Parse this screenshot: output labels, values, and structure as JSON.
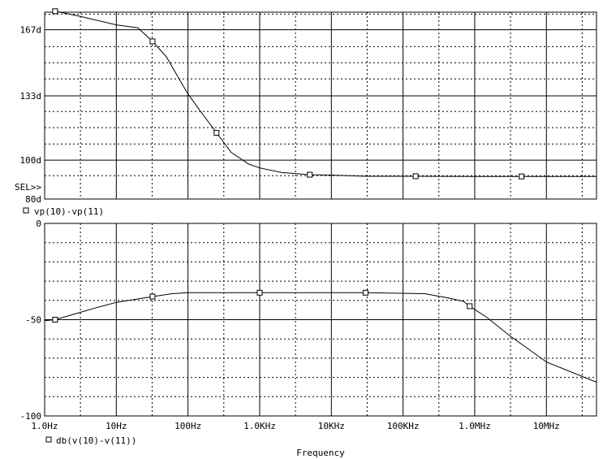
{
  "chart_data": [
    {
      "type": "line",
      "title": "",
      "x_scale": "log",
      "xlim": [
        1,
        50000000
      ],
      "ylim": [
        80,
        176
      ],
      "y_ticks": [
        {
          "value": 167,
          "label": "167d"
        },
        {
          "value": 133,
          "label": "133d"
        },
        {
          "value": 100,
          "label": "100d"
        },
        {
          "value": 80,
          "label": "80d"
        }
      ],
      "y_minor": [
        92,
        108.3,
        116.7,
        125,
        141.7,
        150,
        158.3,
        175
      ],
      "selection_label": "SEL>>",
      "series": [
        {
          "name": "vp(10)-vp(11)",
          "x": [
            1.4,
            3,
            10,
            20,
            32,
            50,
            80,
            100,
            150,
            250,
            400,
            700,
            1000,
            2000,
            5000,
            10000,
            30000,
            150000,
            1000000,
            4500000,
            50000000
          ],
          "y": [
            176.5,
            174,
            169.5,
            168,
            161,
            153,
            140,
            134,
            125,
            114,
            104,
            98,
            96,
            93.7,
            92.5,
            92.3,
            91.7,
            91.7,
            91.6,
            91.6,
            91.6
          ]
        }
      ],
      "markers": {
        "x": [
          1.4,
          32,
          250,
          5000,
          150000,
          4500000
        ],
        "y": [
          176.5,
          161,
          114,
          92.5,
          91.7,
          91.6
        ]
      }
    },
    {
      "type": "line",
      "title": "",
      "x_scale": "log",
      "xlim": [
        1,
        50000000
      ],
      "ylim": [
        -100,
        0
      ],
      "y_ticks": [
        {
          "value": 0,
          "label": "0"
        },
        {
          "value": -50,
          "label": "-50"
        },
        {
          "value": -100,
          "label": "-100"
        }
      ],
      "y_minor": [
        -10,
        -20,
        -30,
        -40,
        -60,
        -70,
        -80,
        -90
      ],
      "x_tick_labels": [
        {
          "value": 1,
          "label": "1.0Hz"
        },
        {
          "value": 10,
          "label": "10Hz"
        },
        {
          "value": 100,
          "label": "100Hz"
        },
        {
          "value": 1000,
          "label": "1.0KHz"
        },
        {
          "value": 10000,
          "label": "10KHz"
        },
        {
          "value": 100000,
          "label": "100KHz"
        },
        {
          "value": 1000000,
          "label": "1.0MHz"
        },
        {
          "value": 10000000,
          "label": "10MHz"
        }
      ],
      "x_minor": [
        3.16,
        31.6,
        316,
        3160,
        31600,
        316000,
        3160000,
        31600000
      ],
      "xlabel": "Frequency",
      "series": [
        {
          "name": "db(v(10)-v(11))",
          "x": [
            1,
            1.4,
            5,
            10,
            32,
            60,
            100,
            1000,
            30000,
            200000,
            400000,
            700000,
            850000,
            1500000,
            3000000,
            10000000,
            50000000
          ],
          "y": [
            -50.5,
            -50,
            -44,
            -41,
            -38,
            -36.5,
            -36,
            -36,
            -36,
            -36.5,
            -38.5,
            -40.5,
            -43,
            -49,
            -58,
            -72,
            -82.5
          ]
        }
      ],
      "markers": {
        "x": [
          1.4,
          32,
          1000,
          30000,
          850000
        ],
        "y": [
          -50,
          -38,
          -36,
          -36,
          -43
        ]
      }
    }
  ]
}
